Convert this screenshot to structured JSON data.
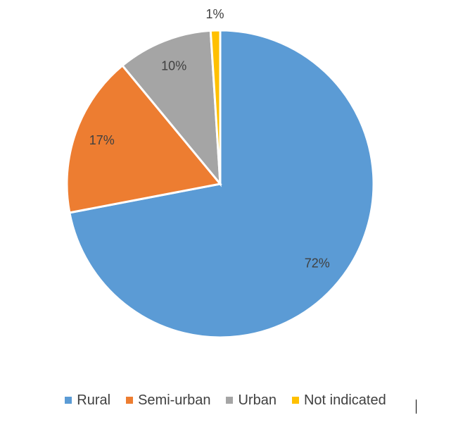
{
  "chart_data": {
    "type": "pie",
    "title": "",
    "slices": [
      {
        "label": "Rural",
        "value": 72,
        "label_text": "72%",
        "color": "#5B9BD5"
      },
      {
        "label": "Semi-urban",
        "value": 17,
        "label_text": "17%",
        "color": "#ED7D31"
      },
      {
        "label": "Urban",
        "value": 10,
        "label_text": "10%",
        "color": "#A5A5A5"
      },
      {
        "label": "Not indicated",
        "value": 1,
        "label_text": "1%",
        "color": "#FFC000"
      }
    ],
    "start_angle_deg": 0,
    "direction": "clockwise",
    "legend_position": "bottom"
  }
}
